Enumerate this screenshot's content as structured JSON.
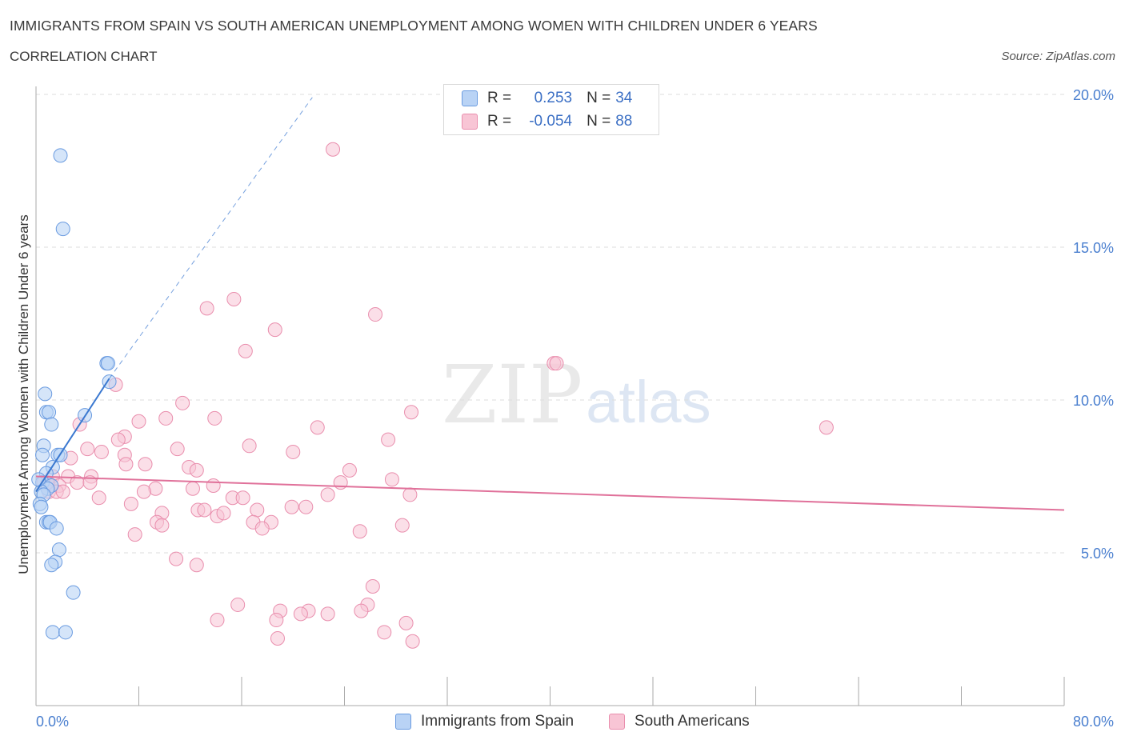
{
  "title": "IMMIGRANTS FROM SPAIN VS SOUTH AMERICAN UNEMPLOYMENT AMONG WOMEN WITH CHILDREN UNDER 6 YEARS",
  "subtitle": "CORRELATION CHART",
  "source": "Source: ZipAtlas.com",
  "watermark": {
    "zip": "ZIP",
    "atlas": "atlas"
  },
  "colors": {
    "spain_fill": "#b9d3f5",
    "spain_stroke": "#6a9be0",
    "spain_line": "#3a78d0",
    "sa_fill": "#f8c5d5",
    "sa_stroke": "#e98ead",
    "sa_line": "#e0719a",
    "tick": "#4a7fcf",
    "grid": "#dddddd"
  },
  "legend": {
    "rows": [
      {
        "r_label": "R =",
        "r_value": "0.253",
        "n_label": "N =",
        "n_value": "34"
      },
      {
        "r_label": "R =",
        "r_value": "-0.054",
        "n_label": "N =",
        "n_value": "88"
      }
    ]
  },
  "chart_data": {
    "type": "scatter",
    "title": "IMMIGRANTS FROM SPAIN VS SOUTH AMERICAN UNEMPLOYMENT AMONG WOMEN WITH CHILDREN UNDER 6 YEARS",
    "subtitle": "CORRELATION CHART",
    "xlabel": "",
    "ylabel": "Unemployment Among Women with Children Under 6 years",
    "xlim": [
      0,
      80
    ],
    "ylim": [
      0,
      20
    ],
    "x_ticks": [
      "0.0%",
      "80.0%"
    ],
    "y_ticks": [
      {
        "value": 5,
        "label": "5.0%"
      },
      {
        "value": 10,
        "label": "10.0%"
      },
      {
        "value": 15,
        "label": "15.0%"
      },
      {
        "value": 20,
        "label": "20.0%"
      }
    ],
    "grid": true,
    "legend_position": "top-center",
    "series": [
      {
        "name": "Immigrants from Spain",
        "r": 0.253,
        "n": 34,
        "trend": {
          "x": [
            0,
            5.7
          ],
          "y": [
            7.0,
            10.7
          ],
          "dashed_to": {
            "x": 21.5,
            "y": 19.9
          }
        },
        "points": [
          [
            1.9,
            18.0
          ],
          [
            2.1,
            15.6
          ],
          [
            5.5,
            11.2
          ],
          [
            5.6,
            11.2
          ],
          [
            0.7,
            10.2
          ],
          [
            0.8,
            9.6
          ],
          [
            5.7,
            10.6
          ],
          [
            1.0,
            9.6
          ],
          [
            1.2,
            9.2
          ],
          [
            3.8,
            9.5
          ],
          [
            0.6,
            8.5
          ],
          [
            0.5,
            8.2
          ],
          [
            1.7,
            8.2
          ],
          [
            1.9,
            8.2
          ],
          [
            1.3,
            7.8
          ],
          [
            0.8,
            7.6
          ],
          [
            0.5,
            7.3
          ],
          [
            1.2,
            7.2
          ],
          [
            0.9,
            7.1
          ],
          [
            0.4,
            7.0
          ],
          [
            0.6,
            6.9
          ],
          [
            0.3,
            6.6
          ],
          [
            0.4,
            6.5
          ],
          [
            0.8,
            6.0
          ],
          [
            1.0,
            6.0
          ],
          [
            1.1,
            6.0
          ],
          [
            1.6,
            5.8
          ],
          [
            1.8,
            5.1
          ],
          [
            1.5,
            4.7
          ],
          [
            1.2,
            4.6
          ],
          [
            2.9,
            3.7
          ],
          [
            1.3,
            2.4
          ],
          [
            2.3,
            2.4
          ],
          [
            0.2,
            7.4
          ]
        ]
      },
      {
        "name": "South Americans",
        "r": -0.054,
        "n": 88,
        "trend": {
          "x": [
            0,
            80
          ],
          "y": [
            7.5,
            6.4
          ]
        },
        "points": [
          [
            23.1,
            18.2
          ],
          [
            15.4,
            13.3
          ],
          [
            13.3,
            13.0
          ],
          [
            26.4,
            12.8
          ],
          [
            18.6,
            12.3
          ],
          [
            16.3,
            11.6
          ],
          [
            40.3,
            11.2
          ],
          [
            40.5,
            11.2
          ],
          [
            6.2,
            10.5
          ],
          [
            11.4,
            9.9
          ],
          [
            29.2,
            9.6
          ],
          [
            10.1,
            9.4
          ],
          [
            13.9,
            9.4
          ],
          [
            3.4,
            9.2
          ],
          [
            8.0,
            9.3
          ],
          [
            21.9,
            9.1
          ],
          [
            61.5,
            9.1
          ],
          [
            6.9,
            8.8
          ],
          [
            6.4,
            8.7
          ],
          [
            27.4,
            8.7
          ],
          [
            16.6,
            8.5
          ],
          [
            4.0,
            8.4
          ],
          [
            11.0,
            8.4
          ],
          [
            5.1,
            8.3
          ],
          [
            20.0,
            8.3
          ],
          [
            6.9,
            8.2
          ],
          [
            2.7,
            8.1
          ],
          [
            7.0,
            7.9
          ],
          [
            8.5,
            7.9
          ],
          [
            11.9,
            7.8
          ],
          [
            24.4,
            7.7
          ],
          [
            12.5,
            7.7
          ],
          [
            4.3,
            7.5
          ],
          [
            2.5,
            7.5
          ],
          [
            1.3,
            7.5
          ],
          [
            23.7,
            7.3
          ],
          [
            27.7,
            7.4
          ],
          [
            0.6,
            7.3
          ],
          [
            1.2,
            7.2
          ],
          [
            1.8,
            7.2
          ],
          [
            3.2,
            7.3
          ],
          [
            4.2,
            7.3
          ],
          [
            9.3,
            7.1
          ],
          [
            12.2,
            7.1
          ],
          [
            13.8,
            7.2
          ],
          [
            8.4,
            7.0
          ],
          [
            1.0,
            7.0
          ],
          [
            1.6,
            7.0
          ],
          [
            2.1,
            7.0
          ],
          [
            15.3,
            6.8
          ],
          [
            16.1,
            6.8
          ],
          [
            22.7,
            6.9
          ],
          [
            29.1,
            6.9
          ],
          [
            4.9,
            6.8
          ],
          [
            7.4,
            6.6
          ],
          [
            12.6,
            6.4
          ],
          [
            13.1,
            6.4
          ],
          [
            17.2,
            6.4
          ],
          [
            19.9,
            6.5
          ],
          [
            21.0,
            6.5
          ],
          [
            9.8,
            6.3
          ],
          [
            14.1,
            6.2
          ],
          [
            14.6,
            6.3
          ],
          [
            9.4,
            6.0
          ],
          [
            9.8,
            5.9
          ],
          [
            16.9,
            6.0
          ],
          [
            18.3,
            6.0
          ],
          [
            28.5,
            5.9
          ],
          [
            17.6,
            5.8
          ],
          [
            25.2,
            5.7
          ],
          [
            7.7,
            5.6
          ],
          [
            10.9,
            4.8
          ],
          [
            12.5,
            4.6
          ],
          [
            26.2,
            3.9
          ],
          [
            15.7,
            3.3
          ],
          [
            19.0,
            3.1
          ],
          [
            25.8,
            3.3
          ],
          [
            21.2,
            3.1
          ],
          [
            20.6,
            3.0
          ],
          [
            25.3,
            3.1
          ],
          [
            14.1,
            2.8
          ],
          [
            18.7,
            2.8
          ],
          [
            28.8,
            2.7
          ],
          [
            18.8,
            2.2
          ],
          [
            22.7,
            3.0
          ],
          [
            27.1,
            2.4
          ],
          [
            29.3,
            2.1
          ],
          [
            0.9,
            7.3
          ]
        ]
      }
    ]
  }
}
